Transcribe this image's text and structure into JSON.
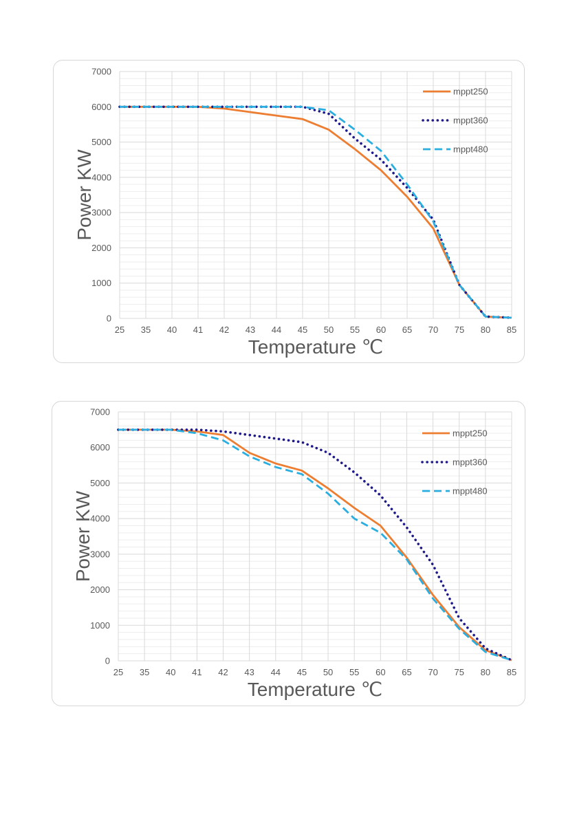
{
  "chart_data": [
    {
      "type": "line",
      "xlabel": "Temperature ℃",
      "ylabel": "Power KW",
      "ylim": [
        0,
        7000
      ],
      "yticks": [
        0,
        1000,
        2000,
        3000,
        4000,
        5000,
        6000,
        7000
      ],
      "categories": [
        "25",
        "35",
        "40",
        "41",
        "42",
        "43",
        "44",
        "45",
        "50",
        "55",
        "60",
        "65",
        "70",
        "75",
        "80",
        "85"
      ],
      "grid": true,
      "legend_position": "top-right",
      "series": [
        {
          "name": "mppt250",
          "color": "#ed7d31",
          "style": "solid",
          "values": [
            6000,
            6000,
            6000,
            6000,
            5950,
            5850,
            5750,
            5650,
            5350,
            4800,
            4200,
            3450,
            2550,
            950,
            50,
            20
          ]
        },
        {
          "name": "mppt360",
          "color": "#1f1a8a",
          "style": "dotted",
          "values": [
            6000,
            6000,
            6000,
            6000,
            6000,
            6000,
            6000,
            6000,
            5800,
            5100,
            4500,
            3700,
            2800,
            950,
            50,
            20
          ]
        },
        {
          "name": "mppt480",
          "color": "#2aaee0",
          "style": "dashed",
          "values": [
            6000,
            6000,
            6000,
            6000,
            6000,
            6000,
            6000,
            6000,
            5900,
            5350,
            4750,
            3800,
            2750,
            950,
            50,
            20
          ]
        }
      ]
    },
    {
      "type": "line",
      "xlabel": "Temperature ℃",
      "ylabel": "Power KW",
      "ylim": [
        0,
        7000
      ],
      "yticks": [
        0,
        1000,
        2000,
        3000,
        4000,
        5000,
        6000,
        7000
      ],
      "categories": [
        "25",
        "35",
        "40",
        "41",
        "42",
        "43",
        "44",
        "45",
        "50",
        "55",
        "60",
        "65",
        "70",
        "75",
        "80",
        "85"
      ],
      "grid": true,
      "legend_position": "top-right",
      "series": [
        {
          "name": "mppt250",
          "color": "#ed7d31",
          "style": "solid",
          "values": [
            6500,
            6500,
            6500,
            6450,
            6350,
            5850,
            5550,
            5350,
            4850,
            4300,
            3800,
            2900,
            1850,
            950,
            300,
            20
          ]
        },
        {
          "name": "mppt360",
          "color": "#1f1a8a",
          "style": "dotted",
          "values": [
            6500,
            6500,
            6500,
            6500,
            6450,
            6350,
            6250,
            6150,
            5850,
            5300,
            4650,
            3750,
            2700,
            1200,
            350,
            20
          ]
        },
        {
          "name": "mppt480",
          "color": "#2aaee0",
          "style": "dashed",
          "values": [
            6500,
            6500,
            6500,
            6400,
            6200,
            5750,
            5450,
            5250,
            4700,
            4000,
            3600,
            2850,
            1750,
            900,
            250,
            20
          ]
        }
      ]
    }
  ]
}
